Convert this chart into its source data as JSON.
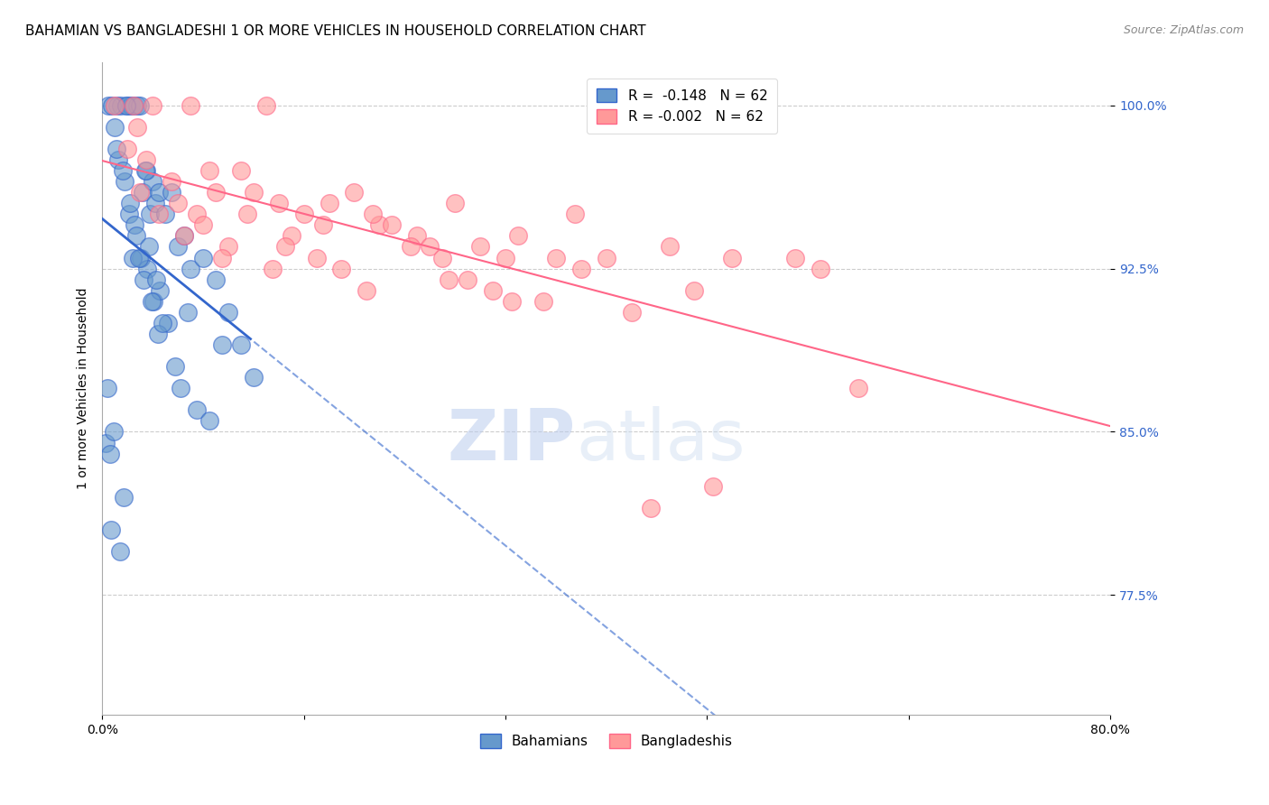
{
  "title": "BAHAMIAN VS BANGLADESHI 1 OR MORE VEHICLES IN HOUSEHOLD CORRELATION CHART",
  "source": "Source: ZipAtlas.com",
  "ylabel": "1 or more Vehicles in Household",
  "xlim": [
    0.0,
    80.0
  ],
  "ylim": [
    72.0,
    102.0
  ],
  "yticks": [
    77.5,
    85.0,
    92.5,
    100.0
  ],
  "ytick_labels": [
    "77.5%",
    "85.0%",
    "92.5%",
    "100.0%"
  ],
  "xticks": [
    0.0,
    16.0,
    32.0,
    48.0,
    64.0,
    80.0
  ],
  "xtick_labels": [
    "0.0%",
    "",
    "",
    "",
    "",
    "80.0%"
  ],
  "blue_R": "-0.148",
  "blue_N": "62",
  "pink_R": "-0.002",
  "pink_N": "62",
  "blue_color": "#6699CC",
  "pink_color": "#FF9999",
  "blue_line_color": "#3366CC",
  "pink_line_color": "#FF6688",
  "watermark_zip": "ZIP",
  "watermark_atlas": "atlas",
  "legend_label_blue": "Bahamians",
  "legend_label_pink": "Bangladeshis",
  "blue_scatter_x": [
    0.5,
    1.2,
    1.5,
    2.0,
    2.3,
    2.5,
    2.8,
    3.0,
    3.2,
    3.5,
    3.8,
    4.0,
    4.2,
    4.5,
    5.0,
    5.5,
    6.0,
    6.5,
    7.0,
    8.0,
    9.0,
    10.0,
    11.0,
    12.0,
    1.0,
    1.3,
    1.8,
    2.1,
    2.6,
    3.1,
    3.6,
    4.1,
    4.6,
    5.2,
    0.8,
    1.1,
    1.6,
    2.2,
    2.7,
    3.3,
    3.9,
    4.4,
    5.8,
    7.5,
    0.3,
    0.7,
    1.4,
    2.4,
    3.7,
    4.8,
    6.2,
    8.5,
    0.6,
    1.7,
    2.9,
    4.3,
    6.8,
    9.5,
    0.4,
    0.9,
    1.9,
    3.4
  ],
  "blue_scatter_y": [
    100.0,
    100.0,
    100.0,
    100.0,
    100.0,
    100.0,
    100.0,
    100.0,
    96.0,
    97.0,
    95.0,
    96.5,
    95.5,
    96.0,
    95.0,
    96.0,
    93.5,
    94.0,
    92.5,
    93.0,
    92.0,
    90.5,
    89.0,
    87.5,
    99.0,
    97.5,
    96.5,
    95.0,
    94.5,
    93.0,
    92.5,
    91.0,
    91.5,
    90.0,
    100.0,
    98.0,
    97.0,
    95.5,
    94.0,
    92.0,
    91.0,
    89.5,
    88.0,
    86.0,
    84.5,
    80.5,
    79.5,
    93.0,
    93.5,
    90.0,
    87.0,
    85.5,
    84.0,
    82.0,
    93.0,
    92.0,
    90.5,
    89.0,
    87.0,
    85.0,
    100.0,
    97.0
  ],
  "pink_scatter_x": [
    1.0,
    2.5,
    4.0,
    7.0,
    13.0,
    3.5,
    5.5,
    7.5,
    9.0,
    11.0,
    14.0,
    16.0,
    18.0,
    20.0,
    22.0,
    25.0,
    28.0,
    30.0,
    33.0,
    36.0,
    40.0,
    45.0,
    50.0,
    57.0,
    2.0,
    3.0,
    6.0,
    8.0,
    10.0,
    12.0,
    15.0,
    17.0,
    19.0,
    21.0,
    23.0,
    26.0,
    29.0,
    32.0,
    35.0,
    38.0,
    42.0,
    47.0,
    27.0,
    31.0,
    8.5,
    11.5,
    14.5,
    17.5,
    21.5,
    24.5,
    27.5,
    32.5,
    37.5,
    43.5,
    48.5,
    55.0,
    60.0,
    2.8,
    4.5,
    6.5,
    9.5,
    13.5
  ],
  "pink_scatter_y": [
    100.0,
    100.0,
    100.0,
    100.0,
    100.0,
    97.5,
    96.5,
    95.0,
    96.0,
    97.0,
    95.5,
    95.0,
    95.5,
    96.0,
    94.5,
    94.0,
    95.5,
    93.5,
    94.0,
    93.0,
    93.0,
    93.5,
    93.0,
    92.5,
    98.0,
    96.0,
    95.5,
    94.5,
    93.5,
    96.0,
    94.0,
    93.0,
    92.5,
    91.5,
    94.5,
    93.5,
    92.0,
    93.0,
    91.0,
    92.5,
    90.5,
    91.5,
    93.0,
    91.5,
    97.0,
    95.0,
    93.5,
    94.5,
    95.0,
    93.5,
    92.0,
    91.0,
    95.0,
    81.5,
    82.5,
    93.0,
    87.0,
    99.0,
    95.0,
    94.0,
    93.0,
    92.5
  ],
  "title_fontsize": 11,
  "source_fontsize": 9,
  "axis_label_fontsize": 10,
  "tick_fontsize": 10,
  "legend_fontsize": 11
}
